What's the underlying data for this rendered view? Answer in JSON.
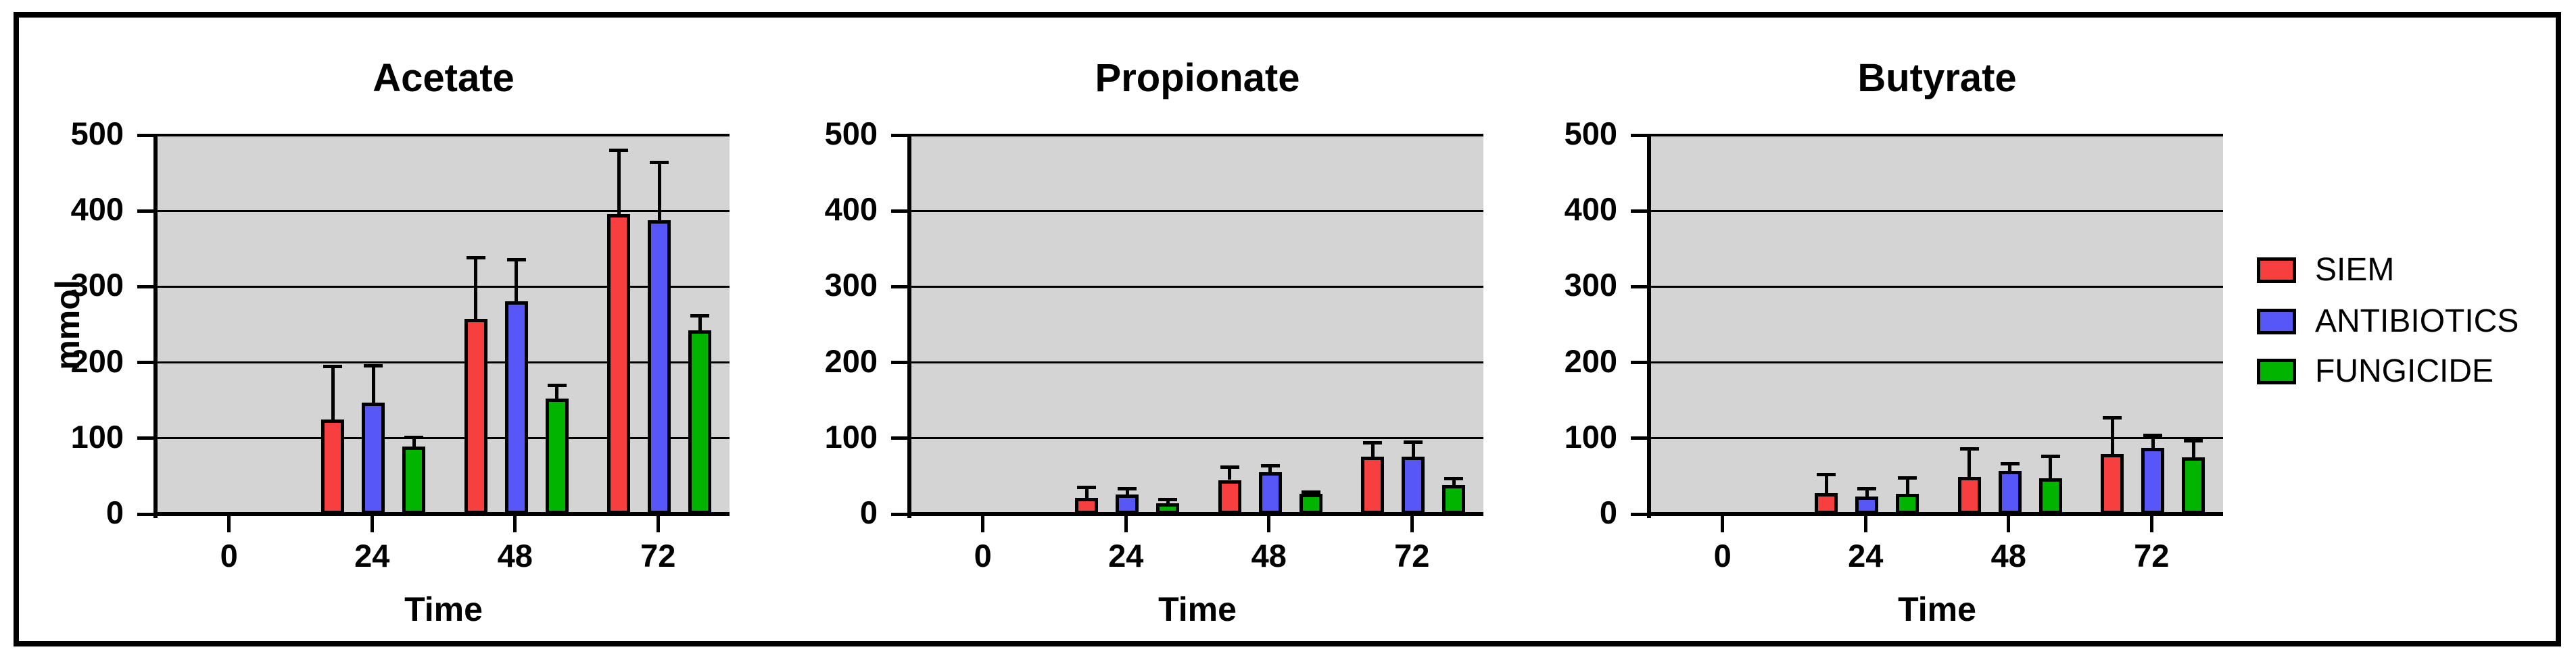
{
  "figure": {
    "background": "#ffffff",
    "plot_background": "#d4d4d4",
    "border_color": "#000000"
  },
  "legend": {
    "entries": [
      {
        "label": "SIEM",
        "color": "#f83f3f"
      },
      {
        "label": "ANTIBIOTICS",
        "color": "#5757f7"
      },
      {
        "label": "FUNGICIDE",
        "color": "#00b400"
      }
    ]
  },
  "chart_data": [
    {
      "type": "bar",
      "title": "Acetate",
      "xlabel": "Time",
      "ylabel": "mmol",
      "categories": [
        "0",
        "24",
        "48",
        "72"
      ],
      "ylim": [
        0,
        500
      ],
      "yticks": [
        0,
        100,
        200,
        300,
        400,
        500
      ],
      "grid": true,
      "legend_position": "right",
      "series": [
        {
          "name": "SIEM",
          "color": "#f83f3f",
          "values": [
            0,
            125,
            258,
            396
          ],
          "errors_plus": [
            0,
            70,
            80,
            84
          ]
        },
        {
          "name": "ANTIBIOTICS",
          "color": "#5757f7",
          "values": [
            0,
            147,
            281,
            388
          ],
          "errors_plus": [
            0,
            49,
            55,
            76
          ]
        },
        {
          "name": "FUNGICIDE",
          "color": "#00b400",
          "values": [
            0,
            89,
            152,
            242
          ],
          "errors_plus": [
            0,
            12,
            18,
            20
          ]
        }
      ]
    },
    {
      "type": "bar",
      "title": "Propionate",
      "xlabel": "Time",
      "ylabel": "",
      "categories": [
        "0",
        "24",
        "48",
        "72"
      ],
      "ylim": [
        0,
        500
      ],
      "yticks": [
        0,
        100,
        200,
        300,
        400,
        500
      ],
      "grid": true,
      "legend_position": "right",
      "series": [
        {
          "name": "SIEM",
          "color": "#f83f3f",
          "values": [
            0,
            21,
            45,
            76
          ],
          "errors_plus": [
            0,
            14,
            17,
            18
          ]
        },
        {
          "name": "ANTIBIOTICS",
          "color": "#5757f7",
          "values": [
            0,
            26,
            55,
            76
          ],
          "errors_plus": [
            0,
            7,
            9,
            19
          ]
        },
        {
          "name": "FUNGICIDE",
          "color": "#00b400",
          "values": [
            0,
            14,
            27,
            38
          ],
          "errors_plus": [
            0,
            5,
            2,
            9
          ]
        }
      ]
    },
    {
      "type": "bar",
      "title": "Butyrate",
      "xlabel": "Time",
      "ylabel": "",
      "categories": [
        "0",
        "24",
        "48",
        "72"
      ],
      "ylim": [
        0,
        500
      ],
      "yticks": [
        0,
        100,
        200,
        300,
        400,
        500
      ],
      "grid": true,
      "legend_position": "right",
      "series": [
        {
          "name": "SIEM",
          "color": "#f83f3f",
          "values": [
            0,
            28,
            49,
            79
          ],
          "errors_plus": [
            0,
            24,
            37,
            48
          ]
        },
        {
          "name": "ANTIBIOTICS",
          "color": "#5757f7",
          "values": [
            0,
            23,
            57,
            87
          ],
          "errors_plus": [
            0,
            10,
            9,
            17
          ]
        },
        {
          "name": "FUNGICIDE",
          "color": "#00b400",
          "values": [
            0,
            27,
            47,
            75
          ],
          "errors_plus": [
            0,
            21,
            29,
            22
          ]
        }
      ]
    }
  ]
}
